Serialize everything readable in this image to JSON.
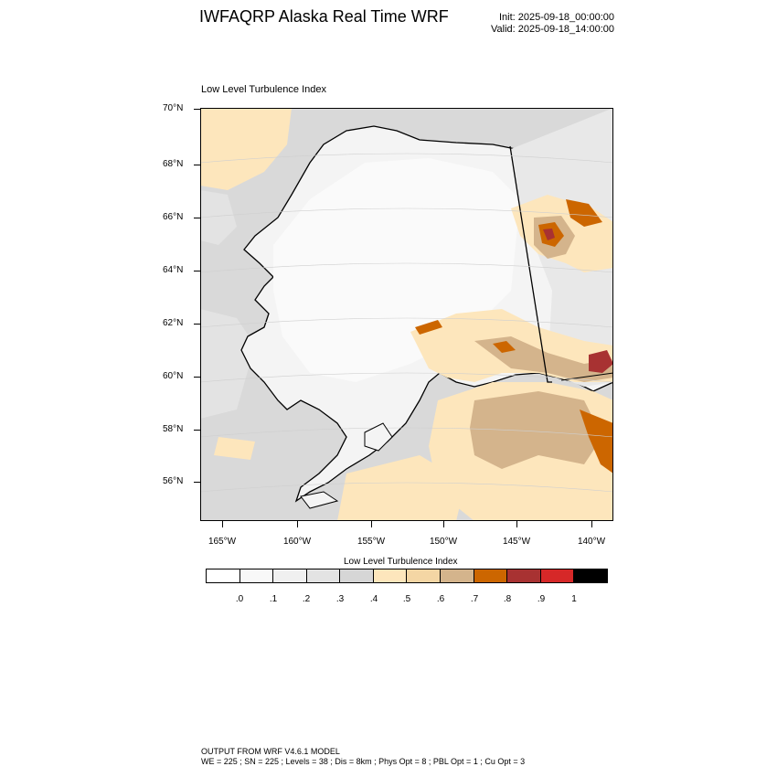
{
  "header": {
    "title": "IWFAQRP Alaska Real Time WRF",
    "init": "Init: 2025-09-18_00:00:00",
    "valid": "Valid: 2025-09-18_14:00:00"
  },
  "map": {
    "subtitle": "Low Level Turbulence Index",
    "lat_labels": [
      "70°N",
      "68°N",
      "66°N",
      "64°N",
      "62°N",
      "60°N",
      "58°N",
      "56°N"
    ],
    "lon_labels": [
      "165°W",
      "160°W",
      "155°W",
      "150°W",
      "145°W",
      "140°W"
    ],
    "colors": {
      "ocean": "#d9d9d9",
      "land_low": "#f7f7f7",
      "turb_light": "#fde6bc",
      "turb_moderate": "#d9b48a",
      "turb_high": "#cc6600",
      "turb_severe": "#a83232",
      "coastline": "#000000"
    }
  },
  "colorbar": {
    "title": "Low Level Turbulence Index",
    "labels": [
      ".0",
      ".1",
      ".2",
      ".3",
      ".4",
      ".5",
      ".6",
      ".7",
      ".8",
      ".9",
      "1"
    ],
    "colors": [
      "#ffffff",
      "#f8f8f8",
      "#f0f0f0",
      "#e3e3e3",
      "#d6d6d6",
      "#fde6bc",
      "#f4d6a4",
      "#d4b48c",
      "#cc6600",
      "#a83232",
      "#d62828",
      "#000000"
    ]
  },
  "footer": {
    "line1": "OUTPUT FROM WRF V4.6.1 MODEL",
    "line2": "WE = 225 ; SN = 225 ; Levels = 38 ; Dis = 8km ; Phys Opt = 8 ; PBL Opt = 1 ; Cu Opt = 3"
  }
}
